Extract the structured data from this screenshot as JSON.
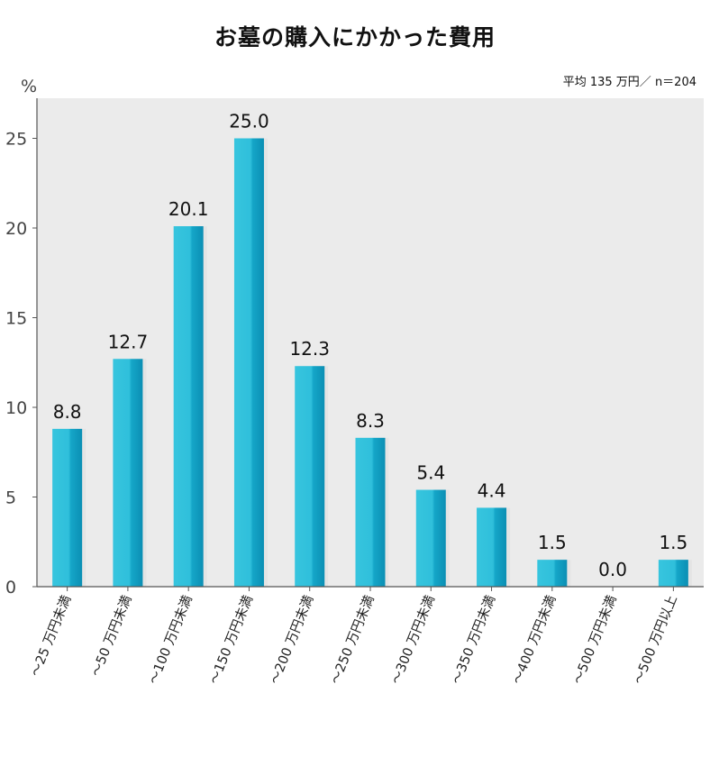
{
  "chart_data": {
    "type": "bar",
    "title": "お墓の購入にかかった費用",
    "ylabel": "%",
    "note": "平均 135 万円／ n＝204",
    "ylim": [
      0,
      27
    ],
    "yticks": [
      0,
      5,
      10,
      15,
      20,
      25
    ],
    "categories": [
      "～25 万円未満",
      "～50 万円未満",
      "～100 万円未満",
      "～150 万円未満",
      "～200 万円未満",
      "～250 万円未満",
      "～300 万円未満",
      "～350 万円未満",
      "～400 万円未満",
      "～500 万円未満",
      "～500 万円以上"
    ],
    "values": [
      8.8,
      12.7,
      20.1,
      25.0,
      12.3,
      8.3,
      5.4,
      4.4,
      1.5,
      0.0,
      1.5
    ],
    "value_labels": [
      "8.8",
      "12.7",
      "20.1",
      "25.0",
      "12.3",
      "8.3",
      "5.4",
      "4.4",
      "1.5",
      "0.0",
      "1.5"
    ],
    "bar_colors": {
      "light": "#37c5de",
      "dark": "#0b8fb4",
      "shadow": "#e4e4e4"
    },
    "plot_background": "#ebebeb",
    "grid": false
  }
}
